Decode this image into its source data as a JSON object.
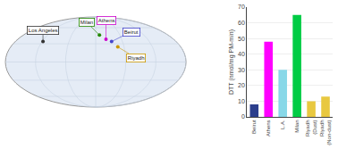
{
  "chart_data": [
    {
      "type": "bar",
      "categories": [
        "Beirut",
        "Athens",
        "L.A.",
        "Milan",
        "Riyadh\n(Dust)",
        "Riyadh\n(Non-dust)"
      ],
      "values": [
        8,
        48,
        30,
        65,
        10,
        13
      ],
      "colors": [
        "#2b3e8c",
        "#ff00ff",
        "#88d8e8",
        "#00cc44",
        "#e8c840",
        "#e8c840"
      ],
      "ylabel": "DTT (nmol/mg PM-min)",
      "ylim": [
        0,
        70
      ],
      "yticks": [
        0,
        10,
        20,
        30,
        40,
        50,
        60,
        70
      ],
      "grid": true
    },
    {
      "type": "map",
      "labels": [
        "Los Angeles",
        "Milan",
        "Athens",
        "Beirut",
        "Riyadh"
      ],
      "lon": [
        -118,
        9.2,
        23.7,
        35.5,
        46.7
      ],
      "lat": [
        34,
        45.5,
        37.9,
        33.9,
        24.7
      ],
      "colors": [
        "#333333",
        "#228800",
        "#cc00cc",
        "#4444cc",
        "#cc9900"
      ],
      "tick_labels": false
    }
  ]
}
